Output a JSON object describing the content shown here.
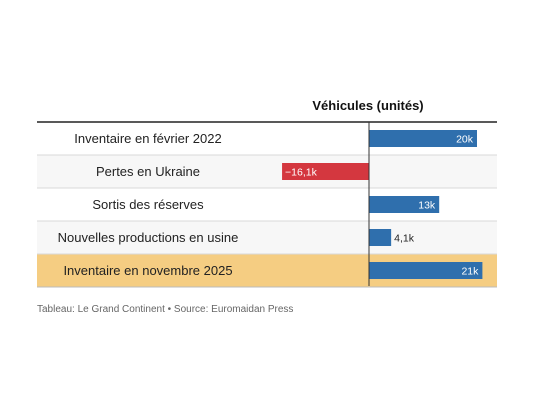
{
  "chart_data": {
    "type": "table",
    "column_header": "Véhicules (unités)",
    "rows": [
      {
        "label": "Inventaire en février 2022",
        "value": 20,
        "value_label": "20k",
        "highlight": false
      },
      {
        "label": "Pertes en Ukraine",
        "value": -16.1,
        "value_label": "−16,1k",
        "highlight": false
      },
      {
        "label": "Sortis des réserves",
        "value": 13,
        "value_label": "13k",
        "highlight": false
      },
      {
        "label": "Nouvelles productions en usine",
        "value": 4.1,
        "value_label": "4,1k",
        "highlight": false
      },
      {
        "label": "Inventaire en novembre 2025",
        "value": 21,
        "value_label": "21k",
        "highlight": true
      }
    ],
    "xlim": [
      -18.5,
      22.5
    ],
    "colors": {
      "positive": "#2f6fad",
      "negative": "#d4373f",
      "highlight_row": "#f5cd82",
      "alt_row": "#f7f7f7"
    }
  },
  "footer": {
    "source": "Tableau: Le Grand Continent • Source: Euromaidan Press"
  }
}
